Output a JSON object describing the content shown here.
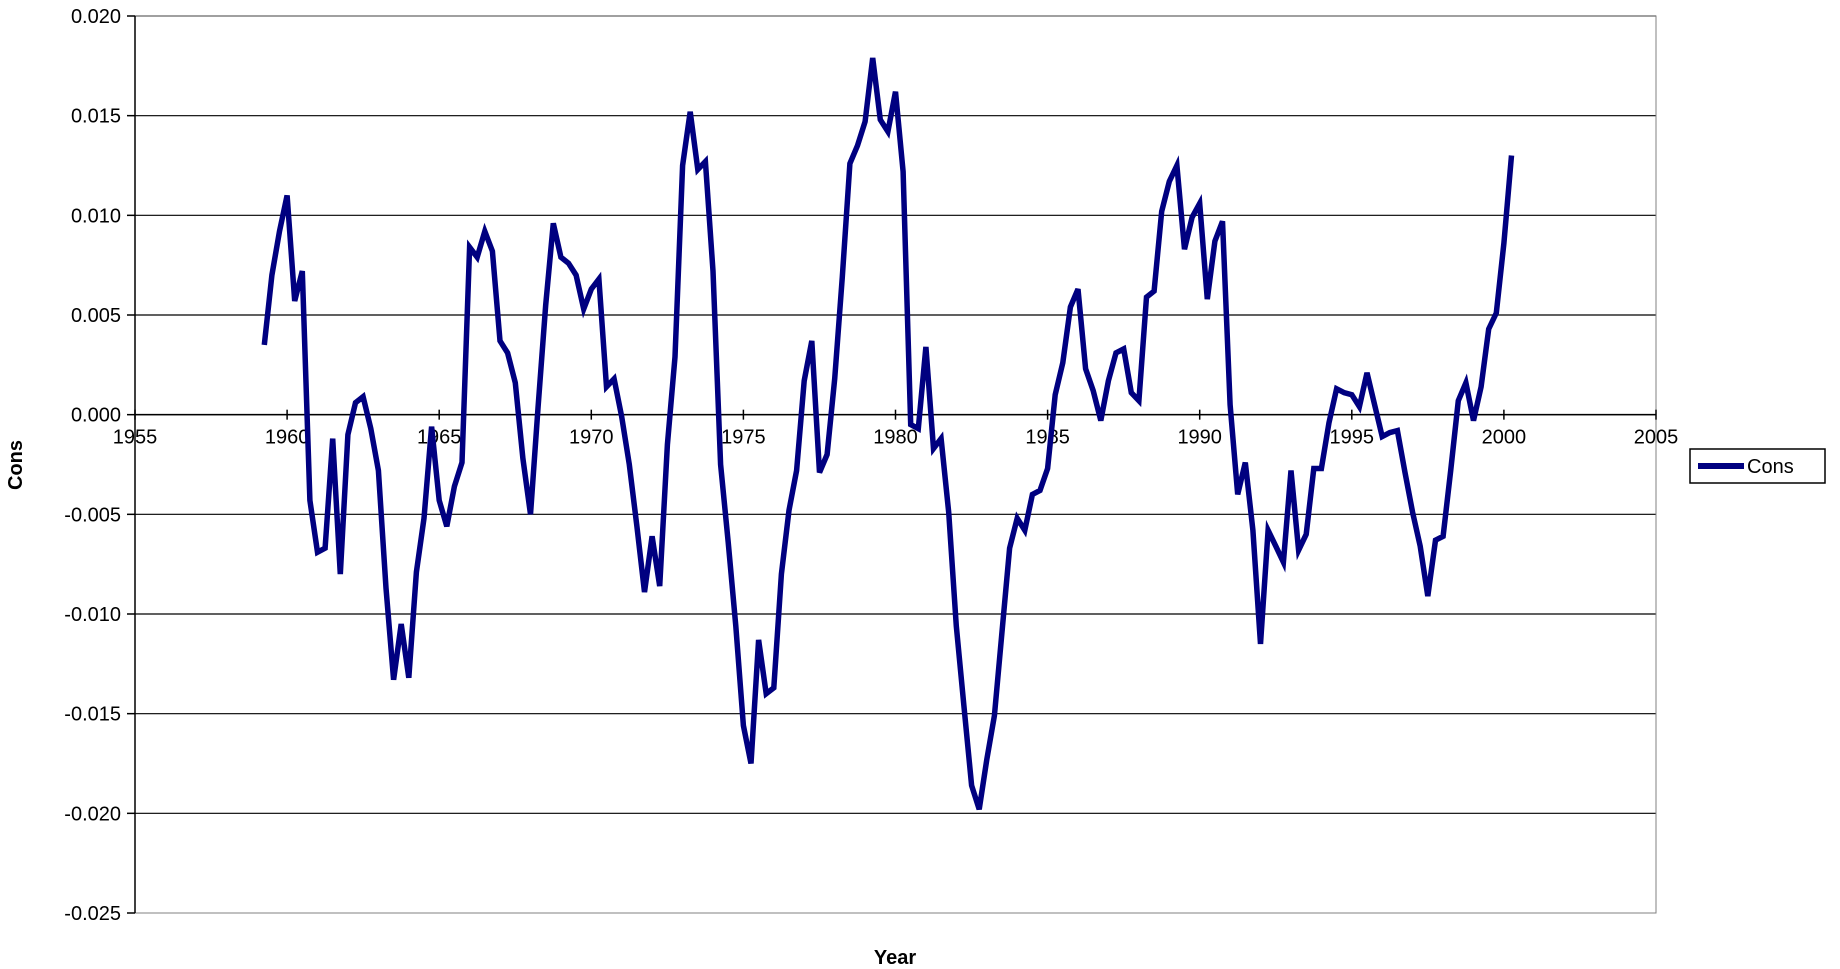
{
  "chart_data": {
    "type": "line",
    "title": "",
    "xlabel": "Year",
    "ylabel": "Cons",
    "xlim": [
      1955,
      2005
    ],
    "ylim": [
      -0.025,
      0.02
    ],
    "x_ticks": [
      1955,
      1960,
      1965,
      1970,
      1975,
      1980,
      1985,
      1990,
      1995,
      2000,
      2005
    ],
    "x_tick_labels": [
      "1955",
      "1960",
      "1965",
      "1970",
      "1975",
      "1980",
      "1985",
      "1990",
      "1995",
      "2000",
      "2005"
    ],
    "y_ticks": [
      -0.025,
      -0.02,
      -0.015,
      -0.01,
      -0.005,
      0.0,
      0.005,
      0.01,
      0.015,
      0.02
    ],
    "y_tick_labels": [
      "-0.025",
      "-0.020",
      "-0.015",
      "-0.010",
      "-0.005",
      "0.000",
      "0.005",
      "0.010",
      "0.015",
      "0.020"
    ],
    "grid": "horizontal",
    "legend_position": "right",
    "line_color": "#000080",
    "series": [
      {
        "name": "Cons",
        "points": [
          [
            1959.25,
            0.0035
          ],
          [
            1959.5,
            0.007
          ],
          [
            1959.75,
            0.0092
          ],
          [
            1960.0,
            0.011
          ],
          [
            1960.25,
            0.0057
          ],
          [
            1960.5,
            0.0072
          ],
          [
            1960.75,
            -0.0043
          ],
          [
            1961.0,
            -0.0069
          ],
          [
            1961.25,
            -0.0067
          ],
          [
            1961.5,
            -0.0012
          ],
          [
            1961.75,
            -0.008
          ],
          [
            1962.0,
            -0.001
          ],
          [
            1962.25,
            0.0006
          ],
          [
            1962.5,
            0.0009
          ],
          [
            1962.75,
            -0.0007
          ],
          [
            1963.0,
            -0.0028
          ],
          [
            1963.25,
            -0.0087
          ],
          [
            1963.5,
            -0.0133
          ],
          [
            1963.75,
            -0.0105
          ],
          [
            1964.0,
            -0.0132
          ],
          [
            1964.25,
            -0.0079
          ],
          [
            1964.5,
            -0.0052
          ],
          [
            1964.75,
            -0.0006
          ],
          [
            1965.0,
            -0.0043
          ],
          [
            1965.25,
            -0.0056
          ],
          [
            1965.5,
            -0.0036
          ],
          [
            1965.75,
            -0.0024
          ],
          [
            1966.0,
            0.0084
          ],
          [
            1966.25,
            0.0079
          ],
          [
            1966.5,
            0.0092
          ],
          [
            1966.75,
            0.0082
          ],
          [
            1967.0,
            0.0037
          ],
          [
            1967.25,
            0.0031
          ],
          [
            1967.5,
            0.0016
          ],
          [
            1967.75,
            -0.0022
          ],
          [
            1968.0,
            -0.005
          ],
          [
            1968.25,
            0.0004
          ],
          [
            1968.5,
            0.0055
          ],
          [
            1968.75,
            0.0096
          ],
          [
            1969.0,
            0.0079
          ],
          [
            1969.25,
            0.0076
          ],
          [
            1969.5,
            0.007
          ],
          [
            1969.75,
            0.0053
          ],
          [
            1970.0,
            0.0063
          ],
          [
            1970.25,
            0.0068
          ],
          [
            1970.5,
            0.0014
          ],
          [
            1970.75,
            0.0018
          ],
          [
            1971.0,
            -0.0001
          ],
          [
            1971.25,
            -0.0025
          ],
          [
            1971.5,
            -0.0056
          ],
          [
            1971.75,
            -0.0089
          ],
          [
            1972.0,
            -0.0061
          ],
          [
            1972.25,
            -0.0086
          ],
          [
            1972.5,
            -0.0015
          ],
          [
            1972.75,
            0.0029
          ],
          [
            1973.0,
            0.0125
          ],
          [
            1973.25,
            0.0152
          ],
          [
            1973.5,
            0.0123
          ],
          [
            1973.75,
            0.0127
          ],
          [
            1974.0,
            0.0072
          ],
          [
            1974.25,
            -0.0025
          ],
          [
            1974.5,
            -0.0064
          ],
          [
            1974.75,
            -0.0106
          ],
          [
            1975.0,
            -0.0156
          ],
          [
            1975.25,
            -0.0175
          ],
          [
            1975.5,
            -0.0113
          ],
          [
            1975.75,
            -0.014
          ],
          [
            1976.0,
            -0.0137
          ],
          [
            1976.25,
            -0.008
          ],
          [
            1976.5,
            -0.0048
          ],
          [
            1976.75,
            -0.0028
          ],
          [
            1977.0,
            0.0017
          ],
          [
            1977.25,
            0.0037
          ],
          [
            1977.5,
            -0.0029
          ],
          [
            1977.75,
            -0.002
          ],
          [
            1978.0,
            0.0018
          ],
          [
            1978.25,
            0.0069
          ],
          [
            1978.5,
            0.0126
          ],
          [
            1978.75,
            0.0135
          ],
          [
            1979.0,
            0.0147
          ],
          [
            1979.25,
            0.0179
          ],
          [
            1979.5,
            0.0148
          ],
          [
            1979.75,
            0.0142
          ],
          [
            1980.0,
            0.0162
          ],
          [
            1980.25,
            0.0122
          ],
          [
            1980.5,
            -0.0005
          ],
          [
            1980.75,
            -0.0007
          ],
          [
            1981.0,
            0.0034
          ],
          [
            1981.25,
            -0.0017
          ],
          [
            1981.5,
            -0.0012
          ],
          [
            1981.75,
            -0.0049
          ],
          [
            1982.0,
            -0.0106
          ],
          [
            1982.25,
            -0.0146
          ],
          [
            1982.5,
            -0.0186
          ],
          [
            1982.75,
            -0.0198
          ],
          [
            1983.0,
            -0.0173
          ],
          [
            1983.25,
            -0.0151
          ],
          [
            1983.5,
            -0.0109
          ],
          [
            1983.75,
            -0.0067
          ],
          [
            1984.0,
            -0.0052
          ],
          [
            1984.25,
            -0.0058
          ],
          [
            1984.5,
            -0.004
          ],
          [
            1984.75,
            -0.0038
          ],
          [
            1985.0,
            -0.0027
          ],
          [
            1985.25,
            0.001
          ],
          [
            1985.5,
            0.0026
          ],
          [
            1985.75,
            0.0054
          ],
          [
            1986.0,
            0.0063
          ],
          [
            1986.25,
            0.0023
          ],
          [
            1986.5,
            0.0012
          ],
          [
            1986.75,
            -0.0003
          ],
          [
            1987.0,
            0.0017
          ],
          [
            1987.25,
            0.0031
          ],
          [
            1987.5,
            0.0033
          ],
          [
            1987.75,
            0.0011
          ],
          [
            1988.0,
            0.0007
          ],
          [
            1988.25,
            0.0059
          ],
          [
            1988.5,
            0.0062
          ],
          [
            1988.75,
            0.0102
          ],
          [
            1989.0,
            0.0117
          ],
          [
            1989.25,
            0.0125
          ],
          [
            1989.5,
            0.0083
          ],
          [
            1989.75,
            0.0099
          ],
          [
            1990.0,
            0.0106
          ],
          [
            1990.25,
            0.0058
          ],
          [
            1990.5,
            0.0087
          ],
          [
            1990.75,
            0.0097
          ],
          [
            1991.0,
            0.0005
          ],
          [
            1991.25,
            -0.004
          ],
          [
            1991.5,
            -0.0024
          ],
          [
            1991.75,
            -0.0058
          ],
          [
            1992.0,
            -0.0115
          ],
          [
            1992.25,
            -0.0058
          ],
          [
            1992.5,
            -0.0066
          ],
          [
            1992.75,
            -0.0074
          ],
          [
            1993.0,
            -0.0028
          ],
          [
            1993.25,
            -0.0068
          ],
          [
            1993.5,
            -0.006
          ],
          [
            1993.75,
            -0.0027
          ],
          [
            1994.0,
            -0.0027
          ],
          [
            1994.25,
            -0.0004
          ],
          [
            1994.5,
            0.0013
          ],
          [
            1994.75,
            0.0011
          ],
          [
            1995.0,
            0.001
          ],
          [
            1995.25,
            0.0004
          ],
          [
            1995.5,
            0.0021
          ],
          [
            1995.75,
            0.0005
          ],
          [
            1996.0,
            -0.0011
          ],
          [
            1996.25,
            -0.0009
          ],
          [
            1996.5,
            -0.0008
          ],
          [
            1996.75,
            -0.0029
          ],
          [
            1997.0,
            -0.0049
          ],
          [
            1997.25,
            -0.0066
          ],
          [
            1997.5,
            -0.0091
          ],
          [
            1997.75,
            -0.0063
          ],
          [
            1998.0,
            -0.0061
          ],
          [
            1998.25,
            -0.0028
          ],
          [
            1998.5,
            0.0007
          ],
          [
            1998.75,
            0.0016
          ],
          [
            1999.0,
            -0.0003
          ],
          [
            1999.25,
            0.0014
          ],
          [
            1999.5,
            0.0043
          ],
          [
            1999.75,
            0.0051
          ],
          [
            2000.0,
            0.0086
          ],
          [
            2000.25,
            0.013
          ]
        ]
      }
    ]
  }
}
